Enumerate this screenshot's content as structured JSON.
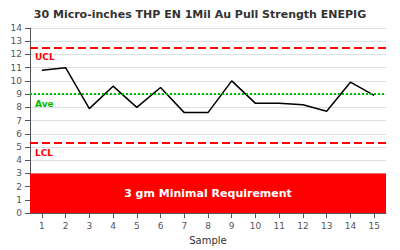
{
  "chart_data": {
    "type": "line",
    "title": "30 Micro-inches THP EN 1Mil Au Pull Strength ENEPIG",
    "xlabel": "Sample",
    "x": [
      1,
      2,
      3,
      4,
      5,
      6,
      7,
      8,
      9,
      10,
      11,
      12,
      13,
      14,
      15
    ],
    "values": [
      10.8,
      11.0,
      7.9,
      9.6,
      8.0,
      9.5,
      7.6,
      7.6,
      10.0,
      8.3,
      8.3,
      8.2,
      7.7,
      9.9,
      8.9
    ],
    "color": "#000000",
    "xlim": [
      0.5,
      15.5
    ],
    "xticks": [
      1,
      2,
      3,
      4,
      5,
      6,
      7,
      8,
      9,
      10,
      11,
      12,
      13,
      14,
      15
    ],
    "ylim": [
      0,
      14
    ],
    "yticks": [
      0,
      1,
      2,
      3,
      4,
      5,
      6,
      7,
      8,
      9,
      10,
      11,
      12,
      13,
      14
    ],
    "grid": "y",
    "reference_lines": [
      {
        "y": 12.5,
        "label": "UCL",
        "color": "#FF0000",
        "line_style": "dashed"
      },
      {
        "y": 9.0,
        "label": "Ave",
        "color": "#00BB00",
        "line_style": "dotted"
      },
      {
        "y": 5.3,
        "label": "LCL",
        "color": "#FF0000",
        "line_style": "dashed"
      }
    ],
    "regions": [
      {
        "from": 0,
        "to": 3,
        "label": "3 gm Minimal Requirement",
        "color": "#FF0000",
        "label_color": "#FFFFFF"
      }
    ]
  }
}
